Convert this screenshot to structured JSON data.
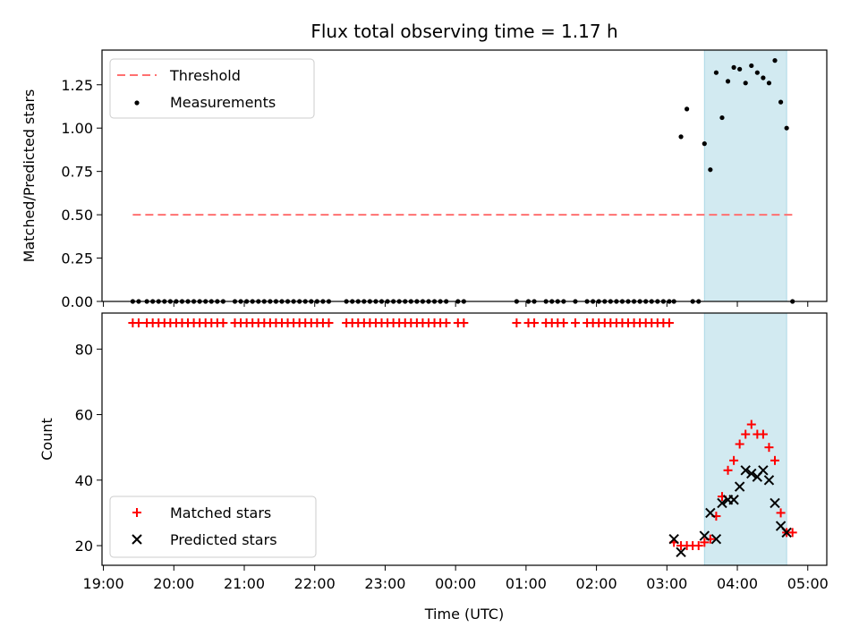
{
  "chart_data": [
    {
      "type": "scatter",
      "title": "Flux total observing time = 1.17 h",
      "ylabel": "Matched/Predicted stars",
      "ylim": [
        0,
        1.45
      ],
      "yticks": [
        0.0,
        0.25,
        0.5,
        0.75,
        1.0,
        1.25
      ],
      "ytick_labels": [
        "0.00",
        "0.25",
        "0.50",
        "0.75",
        "1.00",
        "1.25"
      ],
      "grid": false,
      "legend_position": "top-left",
      "shaded_interval": {
        "from": "03:32",
        "to": "04:42",
        "color": "#add8e6"
      },
      "threshold": {
        "name": "Threshold",
        "y": 0.5,
        "from": "19:25",
        "to": "04:48",
        "color": "#ff7070",
        "style": "dashed"
      },
      "series": [
        {
          "name": "Measurements",
          "color": "#000000",
          "x": [
            "19:25",
            "19:30",
            "19:37",
            "19:42",
            "19:47",
            "19:52",
            "19:57",
            "20:02",
            "20:07",
            "20:12",
            "20:17",
            "20:22",
            "20:27",
            "20:32",
            "20:37",
            "20:42",
            "20:52",
            "20:57",
            "21:02",
            "21:07",
            "21:12",
            "21:17",
            "21:22",
            "21:27",
            "21:32",
            "21:37",
            "21:42",
            "21:47",
            "21:52",
            "21:57",
            "22:02",
            "22:07",
            "22:12",
            "22:27",
            "22:32",
            "22:37",
            "22:42",
            "22:47",
            "22:52",
            "22:57",
            "23:02",
            "23:07",
            "23:12",
            "23:17",
            "23:22",
            "23:27",
            "23:32",
            "23:37",
            "23:42",
            "23:47",
            "23:52",
            "00:02",
            "00:07",
            "00:52",
            "01:02",
            "01:07",
            "01:17",
            "01:22",
            "01:27",
            "01:32",
            "01:42",
            "01:52",
            "01:57",
            "02:02",
            "02:07",
            "02:12",
            "02:17",
            "02:22",
            "02:27",
            "02:32",
            "02:37",
            "02:42",
            "02:47",
            "02:52",
            "02:57",
            "03:02",
            "03:06",
            "03:12",
            "03:17",
            "03:22",
            "03:27",
            "03:32",
            "03:37",
            "03:42",
            "03:47",
            "03:52",
            "03:57",
            "04:02",
            "04:07",
            "04:12",
            "04:17",
            "04:22",
            "04:27",
            "04:32",
            "04:37",
            "04:42",
            "04:47"
          ],
          "y": [
            0,
            0,
            0,
            0,
            0,
            0,
            0,
            0,
            0,
            0,
            0,
            0,
            0,
            0,
            0,
            0,
            0,
            0,
            0,
            0,
            0,
            0,
            0,
            0,
            0,
            0,
            0,
            0,
            0,
            0,
            0,
            0,
            0,
            0,
            0,
            0,
            0,
            0,
            0,
            0,
            0,
            0,
            0,
            0,
            0,
            0,
            0,
            0,
            0,
            0,
            0,
            0,
            0,
            0,
            0,
            0,
            0,
            0,
            0,
            0,
            0,
            0,
            0,
            0,
            0,
            0,
            0,
            0,
            0,
            0,
            0,
            0,
            0,
            0,
            0,
            0,
            0,
            0.95,
            1.11,
            0,
            0,
            0.91,
            0.76,
            1.32,
            1.06,
            1.27,
            1.35,
            1.34,
            1.26,
            1.36,
            1.32,
            1.29,
            1.26,
            1.39,
            1.15,
            1.0,
            0
          ]
        }
      ]
    },
    {
      "type": "scatter",
      "xlabel": "Time (UTC)",
      "ylabel": "Count",
      "ylim": [
        14,
        91
      ],
      "yticks": [
        20,
        40,
        60,
        80
      ],
      "ytick_labels": [
        "20",
        "40",
        "60",
        "80"
      ],
      "xtick_labels": [
        "19:00",
        "20:00",
        "21:00",
        "22:00",
        "23:00",
        "00:00",
        "01:00",
        "02:00",
        "03:00",
        "04:00",
        "05:00"
      ],
      "grid": false,
      "legend_position": "bottom-left",
      "shaded_interval": {
        "from": "03:32",
        "to": "04:42",
        "color": "#add8e6"
      },
      "series": [
        {
          "name": "Matched stars",
          "color": "#ff0000",
          "marker": "+",
          "x": [
            "19:25",
            "19:30",
            "19:37",
            "19:42",
            "19:47",
            "19:52",
            "19:57",
            "20:02",
            "20:07",
            "20:12",
            "20:17",
            "20:22",
            "20:27",
            "20:32",
            "20:37",
            "20:42",
            "20:52",
            "20:57",
            "21:02",
            "21:07",
            "21:12",
            "21:17",
            "21:22",
            "21:27",
            "21:32",
            "21:37",
            "21:42",
            "21:47",
            "21:52",
            "21:57",
            "22:02",
            "22:07",
            "22:12",
            "22:27",
            "22:32",
            "22:37",
            "22:42",
            "22:47",
            "22:52",
            "22:57",
            "23:02",
            "23:07",
            "23:12",
            "23:17",
            "23:22",
            "23:27",
            "23:32",
            "23:37",
            "23:42",
            "23:47",
            "23:52",
            "00:02",
            "00:07",
            "00:52",
            "01:02",
            "01:07",
            "01:17",
            "01:22",
            "01:27",
            "01:32",
            "01:42",
            "01:52",
            "01:57",
            "02:02",
            "02:07",
            "02:12",
            "02:17",
            "02:22",
            "02:27",
            "02:32",
            "02:37",
            "02:42",
            "02:47",
            "02:52",
            "02:57",
            "03:02",
            "03:06",
            "03:12",
            "03:17",
            "03:22",
            "03:27",
            "03:32",
            "03:37",
            "03:42",
            "03:47",
            "03:52",
            "03:57",
            "04:02",
            "04:07",
            "04:12",
            "04:17",
            "04:22",
            "04:27",
            "04:32",
            "04:37",
            "04:42",
            "04:47"
          ],
          "y": [
            88,
            88,
            88,
            88,
            88,
            88,
            88,
            88,
            88,
            88,
            88,
            88,
            88,
            88,
            88,
            88,
            88,
            88,
            88,
            88,
            88,
            88,
            88,
            88,
            88,
            88,
            88,
            88,
            88,
            88,
            88,
            88,
            88,
            88,
            88,
            88,
            88,
            88,
            88,
            88,
            88,
            88,
            88,
            88,
            88,
            88,
            88,
            88,
            88,
            88,
            88,
            88,
            88,
            88,
            88,
            88,
            88,
            88,
            88,
            88,
            88,
            88,
            88,
            88,
            88,
            88,
            88,
            88,
            88,
            88,
            88,
            88,
            88,
            88,
            88,
            88,
            21,
            20,
            20,
            20,
            20,
            21,
            22,
            29,
            35,
            43,
            46,
            51,
            54,
            57,
            54,
            54,
            50,
            46,
            30,
            24,
            24
          ]
        },
        {
          "name": "Predicted stars",
          "color": "#000000",
          "marker": "x",
          "x": [
            "03:06",
            "03:12",
            "03:32",
            "03:37",
            "03:42",
            "03:47",
            "03:52",
            "03:57",
            "04:02",
            "04:07",
            "04:12",
            "04:17",
            "04:22",
            "04:27",
            "04:32",
            "04:37",
            "04:42"
          ],
          "y": [
            22,
            18,
            23,
            30,
            22,
            33,
            34,
            34,
            38,
            43,
            42,
            41,
            43,
            40,
            33,
            26,
            24
          ]
        }
      ]
    }
  ]
}
